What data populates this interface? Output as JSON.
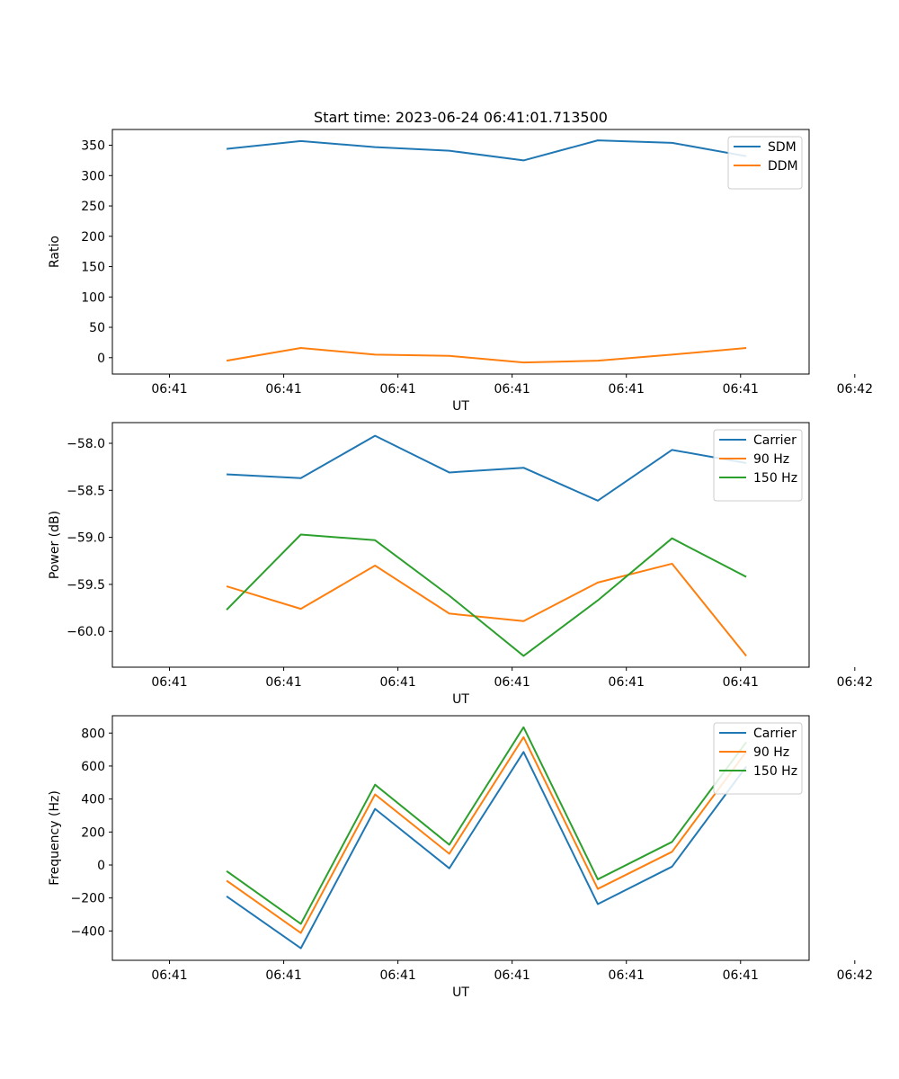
{
  "title": "Start time: 2023-06-24 06:41:01.713500",
  "chart_data": [
    {
      "type": "line",
      "ylabel": "Ratio",
      "xlabel": "UT",
      "ylim": [
        -27,
        376
      ],
      "yticks": [
        0,
        50,
        100,
        150,
        200,
        250,
        300,
        350
      ],
      "yticklabels": [
        "0",
        "50",
        "100",
        "150",
        "200",
        "250",
        "300",
        "350"
      ],
      "xlim": [
        -0.5,
        5.6
      ],
      "xticks": [
        0,
        1,
        2,
        3,
        4,
        5,
        6
      ],
      "xticklabels": [
        "06:41",
        "06:41",
        "06:41",
        "06:41",
        "06:41",
        "06:41",
        "06:42"
      ],
      "x": [
        0.5,
        1.15,
        1.8,
        2.45,
        3.1,
        3.75,
        4.4,
        5.05
      ],
      "legend": "top-right",
      "series": [
        {
          "name": "SDM",
          "color": "#1f77b4",
          "values": [
            344,
            357,
            347,
            341,
            325,
            358,
            354,
            332
          ]
        },
        {
          "name": "DDM",
          "color": "#ff7f0e",
          "values": [
            -5,
            16,
            5,
            3,
            -8,
            -5,
            5,
            16
          ]
        }
      ]
    },
    {
      "type": "line",
      "ylabel": "Power (dB)",
      "xlabel": "UT",
      "ylim": [
        -60.38,
        -57.78
      ],
      "yticks": [
        -60.0,
        -59.5,
        -59.0,
        -58.5,
        -58.0
      ],
      "yticklabels": [
        "−60.0",
        "−59.5",
        "−59.0",
        "−58.5",
        "−58.0"
      ],
      "xlim": [
        -0.5,
        5.6
      ],
      "xticks": [
        0,
        1,
        2,
        3,
        4,
        5,
        6
      ],
      "xticklabels": [
        "06:41",
        "06:41",
        "06:41",
        "06:41",
        "06:41",
        "06:41",
        "06:42"
      ],
      "x": [
        0.5,
        1.15,
        1.8,
        2.45,
        3.1,
        3.75,
        4.4,
        5.05
      ],
      "legend": "top-right",
      "series": [
        {
          "name": "Carrier",
          "color": "#1f77b4",
          "values": [
            -58.33,
            -58.37,
            -57.92,
            -58.31,
            -58.26,
            -58.61,
            -58.07,
            -58.21
          ]
        },
        {
          "name": "90 Hz",
          "color": "#ff7f0e",
          "values": [
            -59.52,
            -59.76,
            -59.3,
            -59.81,
            -59.89,
            -59.48,
            -59.28,
            -60.26
          ]
        },
        {
          "name": "150 Hz",
          "color": "#2ca02c",
          "values": [
            -59.77,
            -58.97,
            -59.03,
            -59.62,
            -60.26,
            -59.67,
            -59.01,
            -59.42
          ]
        }
      ]
    },
    {
      "type": "line",
      "ylabel": "Frequency (Hz)",
      "xlabel": "UT",
      "ylim": [
        -578,
        905
      ],
      "yticks": [
        -400,
        -200,
        0,
        200,
        400,
        600,
        800
      ],
      "yticklabels": [
        "−400",
        "−200",
        "0",
        "200",
        "400",
        "600",
        "800"
      ],
      "xlim": [
        -0.5,
        5.6
      ],
      "xticks": [
        0,
        1,
        2,
        3,
        4,
        5,
        6
      ],
      "xticklabels": [
        "06:41",
        "06:41",
        "06:41",
        "06:41",
        "06:41",
        "06:41",
        "06:42"
      ],
      "x": [
        0.5,
        1.15,
        1.8,
        2.45,
        3.1,
        3.75,
        4.4,
        5.05
      ],
      "legend": "top-right",
      "series": [
        {
          "name": "Carrier",
          "color": "#1f77b4",
          "values": [
            -190,
            -505,
            340,
            -20,
            685,
            -237,
            -10,
            597
          ]
        },
        {
          "name": "90 Hz",
          "color": "#ff7f0e",
          "values": [
            -95,
            -412,
            428,
            68,
            775,
            -145,
            80,
            687
          ]
        },
        {
          "name": "150 Hz",
          "color": "#2ca02c",
          "values": [
            -37,
            -357,
            487,
            123,
            835,
            -87,
            140,
            745
          ]
        }
      ]
    }
  ]
}
